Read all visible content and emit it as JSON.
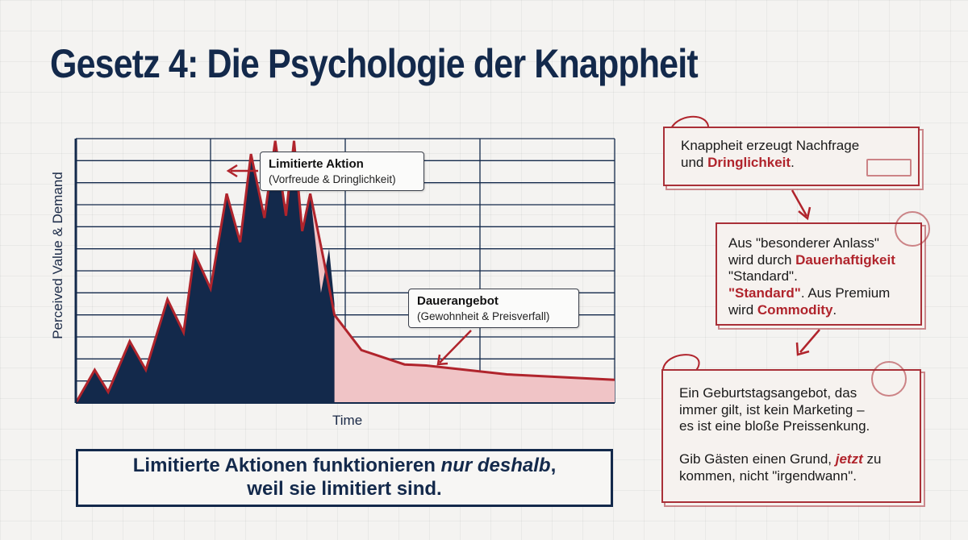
{
  "title": "Gesetz 4: Die Psychologie der Knappheit",
  "chart_data": {
    "type": "area",
    "title": "",
    "xlabel": "Time",
    "ylabel": "Perceived Value & Demand",
    "grid": true,
    "xlim": [
      0,
      100
    ],
    "ylim": [
      0,
      12
    ],
    "spike_series": {
      "x": [
        0,
        3.5,
        6,
        10,
        13,
        17,
        20,
        22,
        25,
        28,
        30.5,
        32.5,
        35,
        37,
        39,
        40.5,
        42,
        43.5,
        45.5,
        47,
        48,
        48,
        0
      ],
      "y": [
        0,
        1.5,
        0.5,
        2.8,
        1.5,
        4.7,
        3.2,
        6.8,
        5.2,
        9.5,
        7.3,
        11.3,
        8.4,
        11.9,
        8.5,
        11.9,
        7.8,
        9.5,
        5.0,
        7.0,
        4.5,
        0,
        0
      ]
    },
    "decline_series": {
      "x": [
        0,
        3.5,
        6,
        10,
        13,
        17,
        20,
        22,
        25,
        28,
        30.5,
        32.5,
        35,
        37,
        39,
        40.5,
        42,
        43.5,
        46,
        48,
        53,
        61,
        65,
        80,
        100
      ],
      "y": [
        0,
        1.5,
        0.5,
        2.8,
        1.5,
        4.7,
        3.2,
        6.8,
        5.2,
        9.5,
        7.3,
        11.3,
        8.4,
        11.9,
        8.5,
        11.9,
        7.8,
        9.5,
        6.5,
        4.0,
        2.4,
        1.75,
        1.7,
        1.3,
        1.05
      ]
    },
    "annotations": [
      {
        "title": "Limitierte Aktion",
        "subtitle": "(Vorfreude & Dringlichkeit)"
      },
      {
        "title": "Dauerangebot",
        "subtitle": "(Gewohnheit & Preisverfall)"
      }
    ]
  },
  "banner": {
    "line1_pre": "Limitierte Aktionen funktionieren ",
    "line1_em": "nur deshalb",
    "line1_post": ",",
    "line2": "weil sie limitiert sind."
  },
  "cards": [
    {
      "parts": [
        "Knappheit erzeugt Nachfrage",
        "und ",
        "Dringlichkeit",
        "."
      ]
    },
    {
      "parts": [
        "Aus \"besonderer Anlass\"",
        "wird durch ",
        "Dauerhaftigkeit",
        "\"Standard\".",
        "\"Standard\"",
        ". Aus Premium",
        "wird ",
        "Commodity",
        "."
      ]
    },
    {
      "parts": [
        "Ein Geburtstagsangebot, das",
        "immer gilt, ist kein Marketing –",
        "es ist eine bloße Preissenkung.",
        "Gib Gästen einen Grund, ",
        "jetzt",
        " zu",
        "kommen, nicht \"irgendwann\"."
      ]
    }
  ],
  "colors": {
    "navy": "#13294b",
    "red": "#b0242c",
    "pink_fill": "#f0c4c6"
  }
}
